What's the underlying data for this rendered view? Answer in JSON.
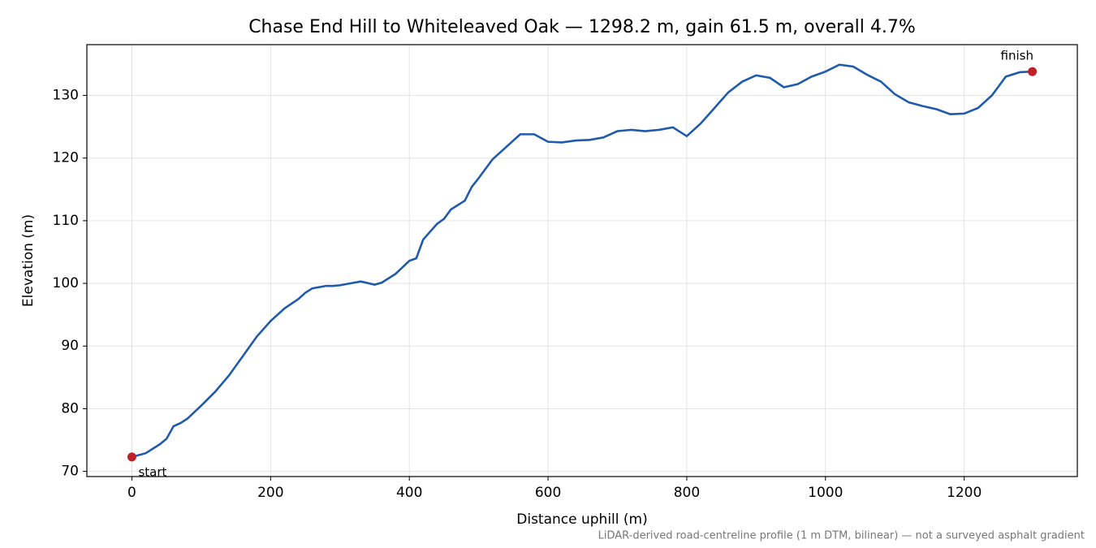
{
  "chart_data": {
    "type": "line",
    "title": "Chase End Hill to Whiteleaved Oak — 1298.2 m, gain 61.5 m, overall 4.7%",
    "x_label": "Distance uphill (m)",
    "y_label": "Elevation (m)",
    "footnote": "LiDAR-derived road-centreline profile (1 m DTM, bilinear) — not a surveyed asphalt gradient",
    "annotations": [
      "start",
      "finish"
    ],
    "x": [
      0,
      20,
      40,
      50,
      60,
      70,
      80,
      100,
      120,
      140,
      160,
      180,
      200,
      220,
      240,
      250,
      260,
      280,
      290,
      300,
      320,
      330,
      350,
      360,
      380,
      400,
      410,
      420,
      440,
      450,
      460,
      480,
      490,
      500,
      520,
      540,
      560,
      580,
      600,
      620,
      640,
      660,
      680,
      700,
      720,
      740,
      760,
      780,
      800,
      820,
      840,
      860,
      880,
      900,
      920,
      940,
      960,
      980,
      1000,
      1020,
      1040,
      1060,
      1080,
      1100,
      1120,
      1140,
      1160,
      1180,
      1200,
      1220,
      1240,
      1260,
      1280,
      1298.2
    ],
    "series": [
      {
        "name": "Elevation",
        "color": "#1f5aad",
        "values": [
          72.3,
          72.9,
          74.3,
          75.2,
          77.2,
          77.7,
          78.4,
          80.5,
          82.7,
          85.3,
          88.4,
          91.5,
          94.0,
          96.0,
          97.5,
          98.5,
          99.2,
          99.6,
          99.6,
          99.7,
          100.1,
          100.3,
          99.8,
          100.1,
          101.5,
          103.6,
          104.0,
          107.0,
          109.5,
          110.3,
          111.8,
          113.2,
          115.4,
          116.8,
          119.8,
          121.8,
          123.8,
          123.8,
          122.6,
          122.5,
          122.8,
          122.9,
          123.3,
          124.3,
          124.5,
          124.3,
          124.5,
          124.9,
          123.5,
          125.5,
          128.0,
          130.5,
          132.2,
          133.2,
          132.8,
          131.3,
          131.8,
          133.0,
          133.8,
          134.9,
          134.6,
          133.3,
          132.2,
          130.2,
          128.9,
          128.3,
          127.8,
          127.0,
          127.1,
          128.0,
          130.0,
          133.0,
          133.7,
          133.8
        ]
      }
    ],
    "marker_color": "#c0202a",
    "xlim": [
      -64.91,
      1363.11
    ],
    "ylim": [
      69.17,
      138.1
    ],
    "xticks": [
      0,
      200,
      400,
      600,
      800,
      1000,
      1200
    ],
    "yticks": [
      70,
      80,
      90,
      100,
      110,
      120,
      130
    ],
    "grid": true
  }
}
